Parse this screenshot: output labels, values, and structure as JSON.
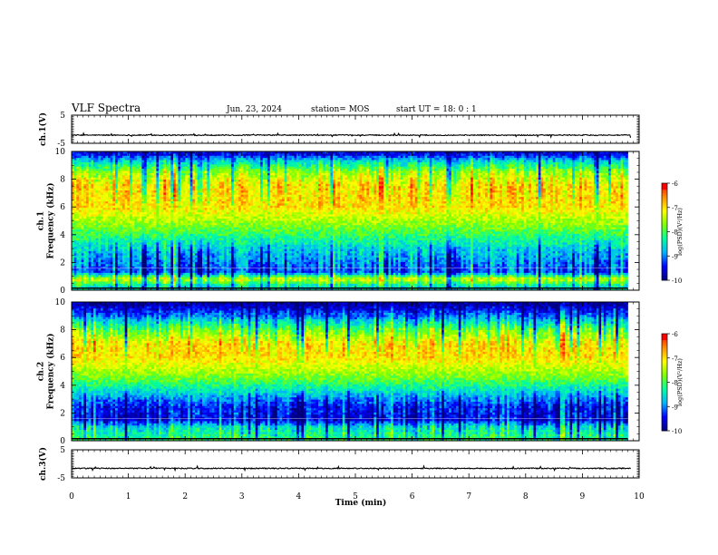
{
  "header": {
    "title": "VLF Spectra",
    "date": "Jun. 23, 2024",
    "station": "station= MOS",
    "start": "start  UT =  18: 0  : 1"
  },
  "colors": {
    "background": "#ffffff",
    "axis": "#000000",
    "colormap": [
      "#00007a",
      "#0000ff",
      "#00b4ff",
      "#00ffa0",
      "#7fff00",
      "#ffff00",
      "#ff8c00",
      "#ff0000",
      "#ffffff"
    ]
  },
  "chart_data": [
    {
      "type": "line",
      "name": "ch1-waveform",
      "ylabel": "ch.1(V)",
      "ylim": [
        -5,
        5
      ],
      "yticks": [
        "5",
        "-5"
      ],
      "approx_level": -2.1
    },
    {
      "type": "heatmap",
      "name": "ch1-spectrogram",
      "ylabel": "ch.1\nFrequency (kHz)",
      "ylim": [
        0,
        10
      ],
      "yticks": [
        "0",
        "2",
        "4",
        "6",
        "8",
        "10"
      ],
      "xlim": [
        0,
        10
      ],
      "time_data_end": 9.8,
      "colorbar": {
        "label": "log(PSD)(V²/Hz)",
        "range": [
          -10,
          -6
        ],
        "ticks": [
          "-6",
          "-7",
          "-8",
          "-9",
          "-10"
        ]
      },
      "band_profile": [
        {
          "kHz": 0.3,
          "log_psd": -8.5
        },
        {
          "kHz": 0.8,
          "log_psd": -7.3
        },
        {
          "kHz": 1.3,
          "log_psd": -9.2
        },
        {
          "kHz": 2.0,
          "log_psd": -9.0
        },
        {
          "kHz": 3.0,
          "log_psd": -8.6
        },
        {
          "kHz": 4.5,
          "log_psd": -7.8
        },
        {
          "kHz": 6.0,
          "log_psd": -7.0
        },
        {
          "kHz": 7.5,
          "log_psd": -7.0
        },
        {
          "kHz": 8.5,
          "log_psd": -7.6
        },
        {
          "kHz": 9.3,
          "log_psd": -8.6
        },
        {
          "kHz": 9.8,
          "log_psd": -9.5
        }
      ]
    },
    {
      "type": "heatmap",
      "name": "ch2-spectrogram",
      "ylabel": "ch.2\nFrequency (kHz)",
      "ylim": [
        0,
        10
      ],
      "yticks": [
        "0",
        "2",
        "4",
        "6",
        "8",
        "10"
      ],
      "xlim": [
        0,
        10
      ],
      "time_data_end": 9.8,
      "colorbar": {
        "label": "log(PSD)(V²/Hz)",
        "range": [
          -10,
          -6
        ],
        "ticks": [
          "-6",
          "-7",
          "-8",
          "-9",
          "-10"
        ]
      },
      "band_profile": [
        {
          "kHz": 0.3,
          "log_psd": -8.2
        },
        {
          "kHz": 1.0,
          "log_psd": -8.6
        },
        {
          "kHz": 1.5,
          "log_psd": -9.6
        },
        {
          "kHz": 2.5,
          "log_psd": -9.4
        },
        {
          "kHz": 3.5,
          "log_psd": -8.6
        },
        {
          "kHz": 4.5,
          "log_psd": -7.8
        },
        {
          "kHz": 6.0,
          "log_psd": -7.0
        },
        {
          "kHz": 7.0,
          "log_psd": -7.1
        },
        {
          "kHz": 8.0,
          "log_psd": -7.9
        },
        {
          "kHz": 9.0,
          "log_psd": -9.1
        },
        {
          "kHz": 9.8,
          "log_psd": -9.8
        }
      ]
    },
    {
      "type": "line",
      "name": "ch3-waveform",
      "ylabel": "ch.3(V)",
      "ylim": [
        -5,
        5
      ],
      "yticks": [
        "5",
        "-5"
      ],
      "approx_level": -1.6
    }
  ],
  "xaxis": {
    "label": "Time  (min)",
    "ticks": [
      "0",
      "1",
      "2",
      "3",
      "4",
      "5",
      "6",
      "7",
      "8",
      "9",
      "10"
    ]
  }
}
